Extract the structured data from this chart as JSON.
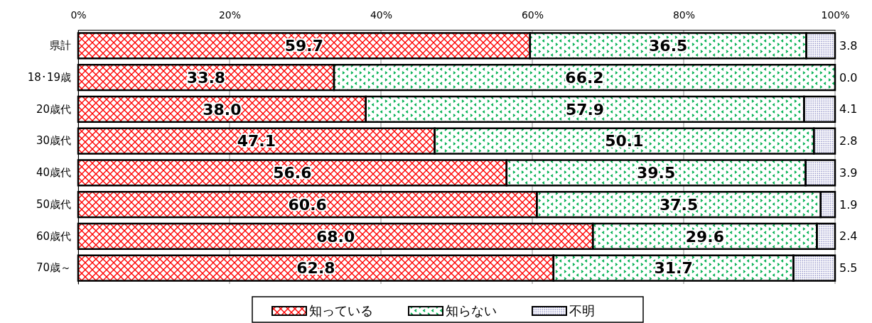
{
  "chart_data": {
    "type": "bar",
    "orientation": "horizontal",
    "stacked": true,
    "categories": [
      "県計",
      "18･19歳",
      "20歳代",
      "30歳代",
      "40歳代",
      "50歳代",
      "60歳代",
      "70歳～"
    ],
    "series": [
      {
        "name": "知っている",
        "color": "#ff0000",
        "values": [
          59.7,
          33.8,
          38.0,
          47.1,
          56.6,
          60.6,
          68.0,
          62.8
        ],
        "value_labels": [
          "59.7",
          "33.8",
          "38.0",
          "47.1",
          "56.6",
          "60.6",
          "68.0",
          "62.8"
        ]
      },
      {
        "name": "知らない",
        "color": "#00b050",
        "values": [
          36.5,
          66.2,
          57.9,
          50.1,
          39.5,
          37.5,
          29.6,
          31.7
        ],
        "value_labels": [
          "36.5",
          "66.2",
          "57.9",
          "50.1",
          "39.5",
          "37.5",
          "29.6",
          "31.7"
        ]
      },
      {
        "name": "不明",
        "color": "#9999cc",
        "values": [
          3.8,
          0.0,
          4.1,
          2.8,
          3.9,
          1.9,
          2.4,
          5.5
        ],
        "value_labels": [
          "3.8",
          "0.0",
          "4.1",
          "2.8",
          "3.9",
          "1.9",
          "2.4",
          "5.5"
        ]
      }
    ],
    "xlim": [
      0,
      100
    ],
    "xticks": [
      {
        "value": 0,
        "label": "0%"
      },
      {
        "value": 20,
        "label": "20%"
      },
      {
        "value": 40,
        "label": "40%"
      },
      {
        "value": 60,
        "label": "60%"
      },
      {
        "value": 80,
        "label": "80%"
      },
      {
        "value": 100,
        "label": "100%"
      }
    ],
    "grid": "x",
    "legend": "bottom"
  }
}
